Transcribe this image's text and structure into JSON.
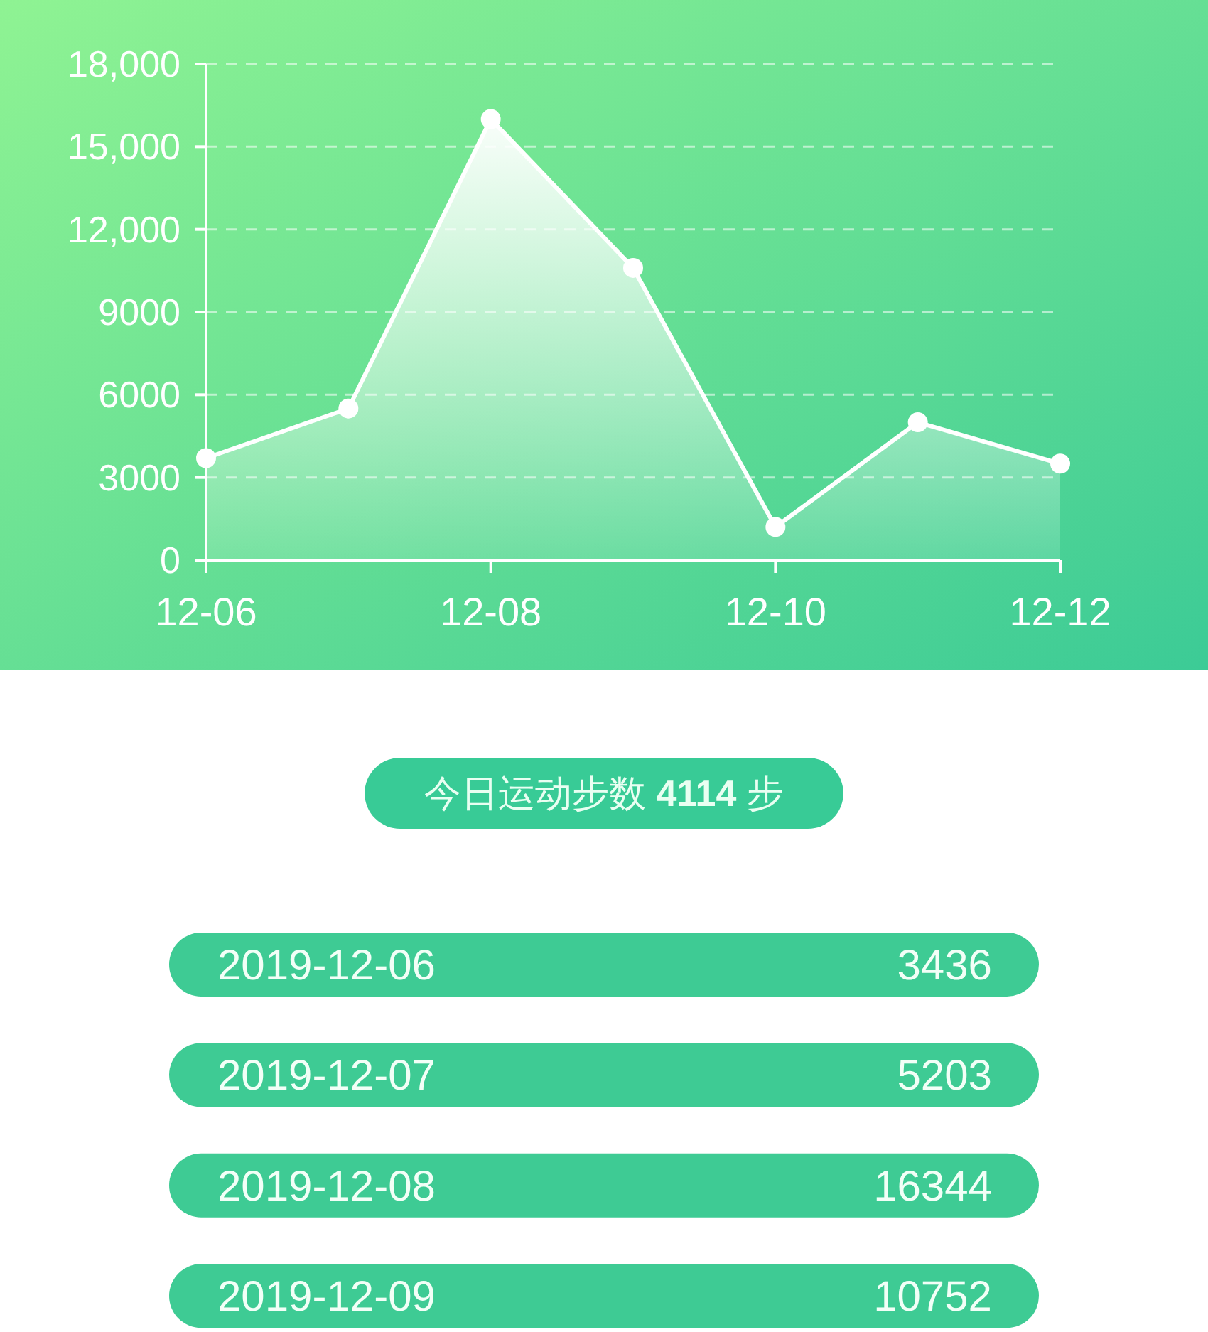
{
  "chart_data": [
    {
      "type": "area",
      "categories": [
        "12-06",
        null,
        "12-08",
        null,
        "12-10",
        null,
        "12-12"
      ],
      "values": [
        3700,
        5500,
        16000,
        10600,
        1200,
        5000,
        3500
      ],
      "color": "#ffffff",
      "ylim": [
        0,
        18000
      ],
      "yticks": [
        0,
        3000,
        6000,
        9000,
        {
          "value": 12000,
          "label": "12,000"
        },
        {
          "value": 15000,
          "label": "15,000"
        },
        {
          "value": 18000,
          "label": "18,000"
        }
      ],
      "grid": "y",
      "marker": "circle",
      "line_style": "solid"
    },
    {
      "type": "other",
      "title": "今日运动步数 **4114** 步",
      "categories": [
        "2019-12-06",
        "2019-12-07",
        "2019-12-08",
        "2019-12-09"
      ],
      "values": [
        3436,
        5203,
        16344,
        10752
      ],
      "data_labels": true
    }
  ]
}
